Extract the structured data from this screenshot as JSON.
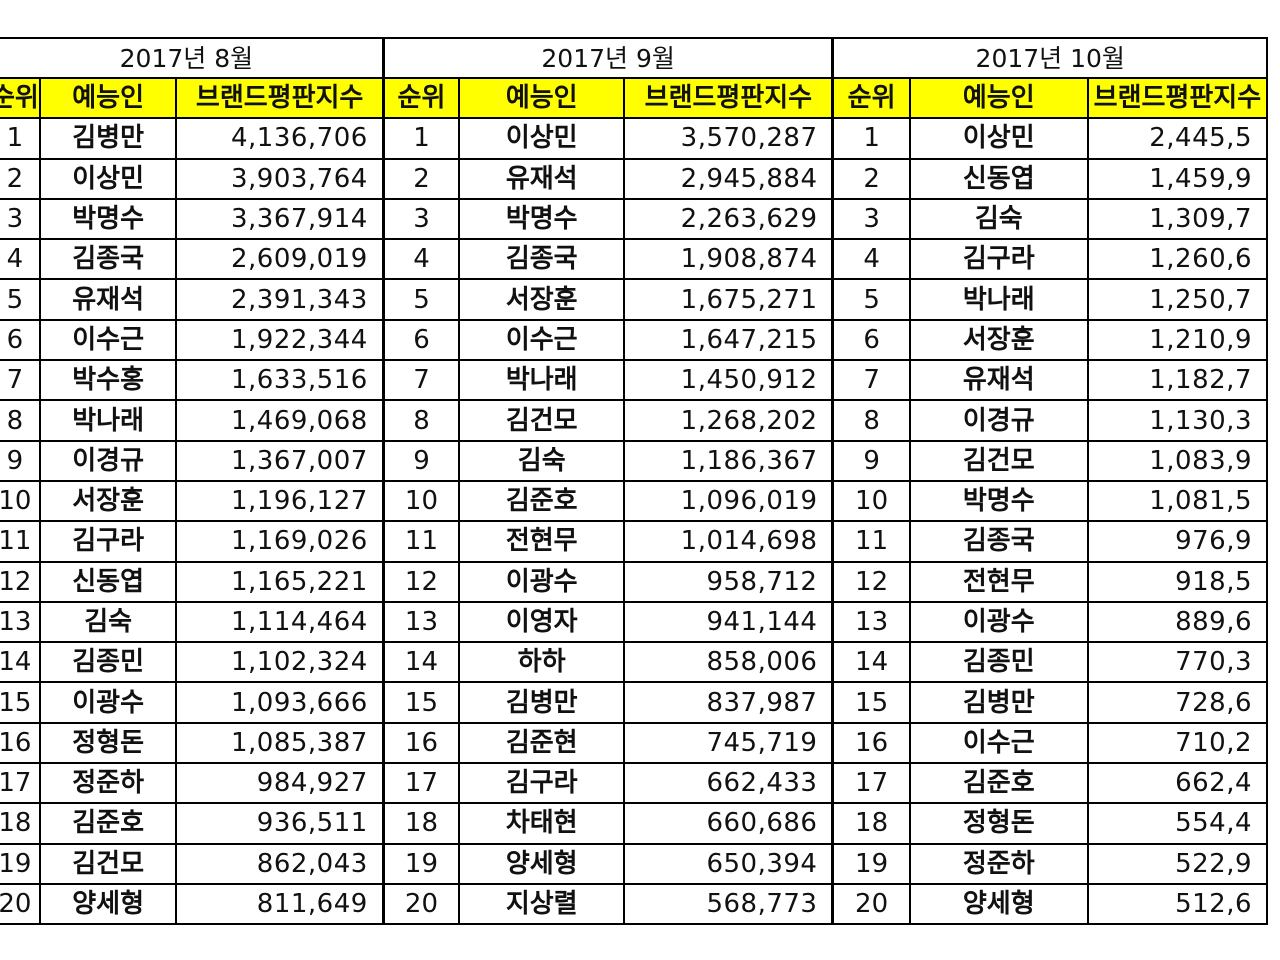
{
  "headers": {
    "rank": "순위",
    "name": "예능인",
    "score": "브랜드평판지수"
  },
  "months": [
    {
      "title": "2017년 8월",
      "rows": [
        {
          "rank": "1",
          "name": "김병만",
          "score": "4,136,706"
        },
        {
          "rank": "2",
          "name": "이상민",
          "score": "3,903,764"
        },
        {
          "rank": "3",
          "name": "박명수",
          "score": "3,367,914"
        },
        {
          "rank": "4",
          "name": "김종국",
          "score": "2,609,019"
        },
        {
          "rank": "5",
          "name": "유재석",
          "score": "2,391,343"
        },
        {
          "rank": "6",
          "name": "이수근",
          "score": "1,922,344"
        },
        {
          "rank": "7",
          "name": "박수홍",
          "score": "1,633,516"
        },
        {
          "rank": "8",
          "name": "박나래",
          "score": "1,469,068"
        },
        {
          "rank": "9",
          "name": "이경규",
          "score": "1,367,007"
        },
        {
          "rank": "10",
          "name": "서장훈",
          "score": "1,196,127"
        },
        {
          "rank": "11",
          "name": "김구라",
          "score": "1,169,026"
        },
        {
          "rank": "12",
          "name": "신동엽",
          "score": "1,165,221"
        },
        {
          "rank": "13",
          "name": "김숙",
          "score": "1,114,464"
        },
        {
          "rank": "14",
          "name": "김종민",
          "score": "1,102,324"
        },
        {
          "rank": "15",
          "name": "이광수",
          "score": "1,093,666"
        },
        {
          "rank": "16",
          "name": "정형돈",
          "score": "1,085,387"
        },
        {
          "rank": "17",
          "name": "정준하",
          "score": "984,927"
        },
        {
          "rank": "18",
          "name": "김준호",
          "score": "936,511"
        },
        {
          "rank": "19",
          "name": "김건모",
          "score": "862,043"
        },
        {
          "rank": "20",
          "name": "양세형",
          "score": "811,649"
        }
      ]
    },
    {
      "title": "2017년 9월",
      "rows": [
        {
          "rank": "1",
          "name": "이상민",
          "score": "3,570,287"
        },
        {
          "rank": "2",
          "name": "유재석",
          "score": "2,945,884"
        },
        {
          "rank": "3",
          "name": "박명수",
          "score": "2,263,629"
        },
        {
          "rank": "4",
          "name": "김종국",
          "score": "1,908,874"
        },
        {
          "rank": "5",
          "name": "서장훈",
          "score": "1,675,271"
        },
        {
          "rank": "6",
          "name": "이수근",
          "score": "1,647,215"
        },
        {
          "rank": "7",
          "name": "박나래",
          "score": "1,450,912"
        },
        {
          "rank": "8",
          "name": "김건모",
          "score": "1,268,202"
        },
        {
          "rank": "9",
          "name": "김숙",
          "score": "1,186,367"
        },
        {
          "rank": "10",
          "name": "김준호",
          "score": "1,096,019"
        },
        {
          "rank": "11",
          "name": "전현무",
          "score": "1,014,698"
        },
        {
          "rank": "12",
          "name": "이광수",
          "score": "958,712"
        },
        {
          "rank": "13",
          "name": "이영자",
          "score": "941,144"
        },
        {
          "rank": "14",
          "name": "하하",
          "score": "858,006"
        },
        {
          "rank": "15",
          "name": "김병만",
          "score": "837,987"
        },
        {
          "rank": "16",
          "name": "김준현",
          "score": "745,719"
        },
        {
          "rank": "17",
          "name": "김구라",
          "score": "662,433"
        },
        {
          "rank": "18",
          "name": "차태현",
          "score": "660,686"
        },
        {
          "rank": "19",
          "name": "양세형",
          "score": "650,394"
        },
        {
          "rank": "20",
          "name": "지상렬",
          "score": "568,773"
        }
      ]
    },
    {
      "title": "2017년 10월",
      "rows": [
        {
          "rank": "1",
          "name": "이상민",
          "score": "2,445,5"
        },
        {
          "rank": "2",
          "name": "신동엽",
          "score": "1,459,9"
        },
        {
          "rank": "3",
          "name": "김숙",
          "score": "1,309,7"
        },
        {
          "rank": "4",
          "name": "김구라",
          "score": "1,260,6"
        },
        {
          "rank": "5",
          "name": "박나래",
          "score": "1,250,7"
        },
        {
          "rank": "6",
          "name": "서장훈",
          "score": "1,210,9"
        },
        {
          "rank": "7",
          "name": "유재석",
          "score": "1,182,7"
        },
        {
          "rank": "8",
          "name": "이경규",
          "score": "1,130,3"
        },
        {
          "rank": "9",
          "name": "김건모",
          "score": "1,083,9"
        },
        {
          "rank": "10",
          "name": "박명수",
          "score": "1,081,5"
        },
        {
          "rank": "11",
          "name": "김종국",
          "score": "976,9"
        },
        {
          "rank": "12",
          "name": "전현무",
          "score": "918,5"
        },
        {
          "rank": "13",
          "name": "이광수",
          "score": "889,6"
        },
        {
          "rank": "14",
          "name": "김종민",
          "score": "770,3"
        },
        {
          "rank": "15",
          "name": "김병만",
          "score": "728,6"
        },
        {
          "rank": "16",
          "name": "이수근",
          "score": "710,2"
        },
        {
          "rank": "17",
          "name": "김준호",
          "score": "662,4"
        },
        {
          "rank": "18",
          "name": "정형돈",
          "score": "554,4"
        },
        {
          "rank": "19",
          "name": "정준하",
          "score": "522,9"
        },
        {
          "rank": "20",
          "name": "양세형",
          "score": "512,6"
        }
      ]
    }
  ]
}
